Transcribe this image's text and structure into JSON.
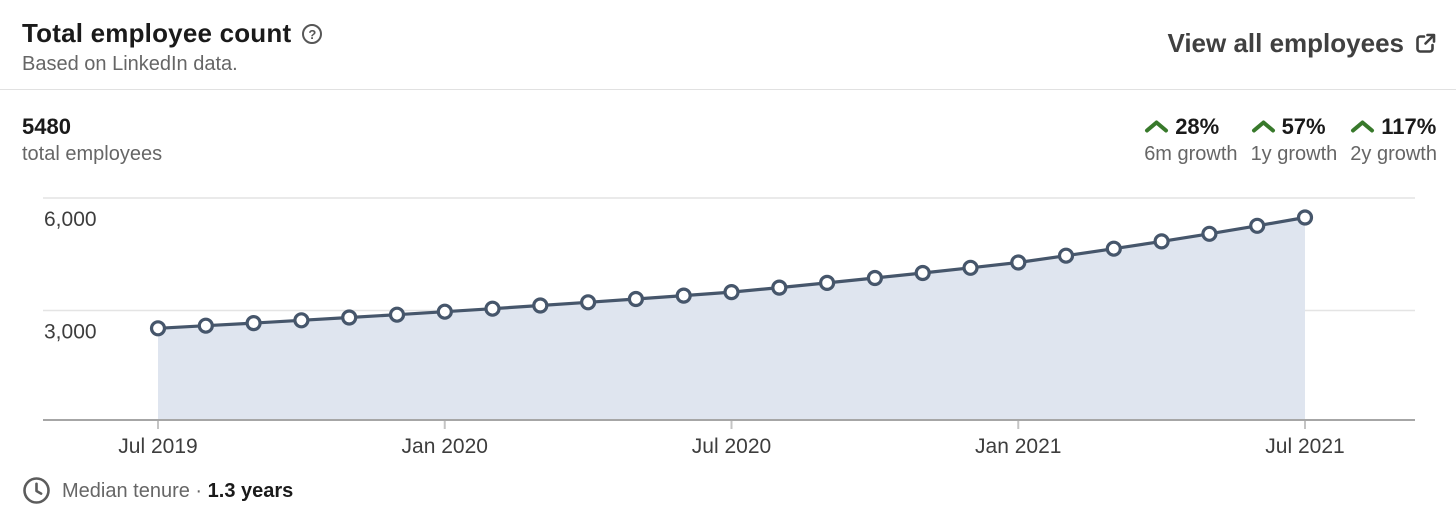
{
  "header": {
    "title": "Total employee count",
    "subtitle": "Based on LinkedIn data.",
    "view_all_label": "View all employees"
  },
  "icons": {
    "help_glyph": "?"
  },
  "summary": {
    "value": "5480",
    "label": "total employees",
    "growth_stats": [
      {
        "value": "28%",
        "label": "6m growth"
      },
      {
        "value": "57%",
        "label": "1y growth"
      },
      {
        "value": "117%",
        "label": "2y growth"
      }
    ]
  },
  "footer": {
    "label": "Median tenure · ",
    "value": "1.3 years"
  },
  "colors": {
    "accent_green": "#38792B",
    "line": "#46566B",
    "marker_fill": "#FFFFFF",
    "area_fill": "#DFE5EF",
    "grid": "#E4E4E4",
    "axis": "#A6A6A6",
    "tick": "#C4C4C4",
    "axis_text": "#3D3D3D",
    "text_primary": "#1A1A1A",
    "text_secondary": "#666666"
  },
  "chart_data": {
    "type": "area",
    "title": "Total employee count over time",
    "x": [
      "Jul 2019",
      "Aug 2019",
      "Sep 2019",
      "Oct 2019",
      "Nov 2019",
      "Dec 2019",
      "Jan 2020",
      "Feb 2020",
      "Mar 2020",
      "Apr 2020",
      "May 2020",
      "Jun 2020",
      "Jul 2020",
      "Aug 2020",
      "Sep 2020",
      "Oct 2020",
      "Nov 2020",
      "Dec 2020",
      "Jan 2021",
      "Feb 2021",
      "Mar 2021",
      "Apr 2021",
      "May 2021",
      "Jun 2021",
      "Jul 2021"
    ],
    "values": [
      2525,
      2594,
      2665,
      2738,
      2813,
      2889,
      2968,
      3049,
      3133,
      3218,
      3306,
      3396,
      3490,
      3611,
      3736,
      3866,
      4000,
      4139,
      4281,
      4461,
      4648,
      4843,
      5046,
      5258,
      5480
    ],
    "x_ticks": [
      {
        "index": 0,
        "label": "Jul 2019"
      },
      {
        "index": 6,
        "label": "Jan 2020"
      },
      {
        "index": 12,
        "label": "Jul 2020"
      },
      {
        "index": 18,
        "label": "Jan 2021"
      },
      {
        "index": 24,
        "label": "Jul 2021"
      }
    ],
    "y_ticks": [
      {
        "value": 3000,
        "label": "3,000"
      },
      {
        "value": 6000,
        "label": "6,000"
      }
    ],
    "ylim": [
      0,
      6500
    ],
    "grid": true,
    "legend": false,
    "marker": "circle"
  }
}
